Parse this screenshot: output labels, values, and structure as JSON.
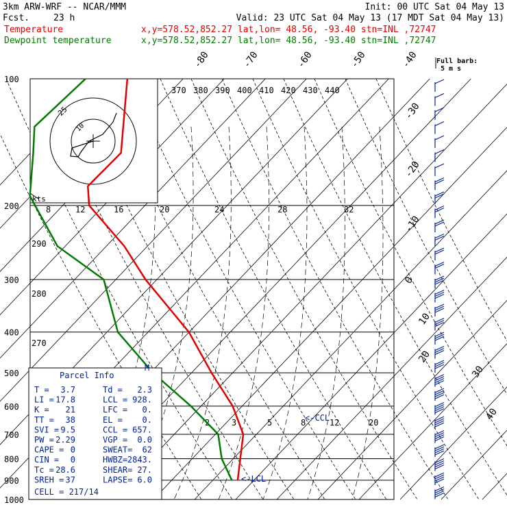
{
  "header": {
    "model": "3km ARW-WRF -- NCAR/MMM",
    "fcst_label": "Fcst.",
    "fcst_value": "23 h",
    "init": "Init: 00 UTC Sat 04 May 13",
    "valid": "Valid: 23 UTC Sat 04 May 13 (17 MDT Sat 04 May 13)"
  },
  "traces": [
    {
      "name": "Temperature",
      "info": "x,y=578.52,852.27   lat,lon= 48.56, -93.40   stn=INL ,72747",
      "color": "#e00000"
    },
    {
      "name": "Dewpoint temperature",
      "info": "x,y=578.52,852.27   lat,lon= 48.56, -93.40   stn=INL ,72747",
      "color": "#007a00"
    }
  ],
  "wind_legend": {
    "title": "Full barb:",
    "value": "5 m s"
  },
  "chart_data": {
    "type": "line",
    "pressure_levels": [
      100,
      200,
      300,
      400,
      500,
      600,
      700,
      800,
      900,
      1000
    ],
    "isotherm_labels": [
      "-80",
      "-70",
      "-60",
      "-50",
      "-40",
      "-30",
      "-20",
      "-10",
      "0",
      "10",
      "20",
      "30",
      "40"
    ],
    "theta_e_labels": [
      "370",
      "380",
      "390",
      "400",
      "410",
      "420",
      "430",
      "440"
    ],
    "mixing_ratio_labels": [
      "8",
      "12",
      "16",
      "20",
      "24",
      "28",
      "32"
    ],
    "mixing_ratio_lower_labels": [
      "2",
      "3",
      "5",
      "8",
      "12",
      "20"
    ],
    "adiabat_labels": [
      "290",
      "280",
      "270"
    ],
    "hodograph": {
      "ring_labels": [
        "25",
        "10"
      ],
      "axis_label": "kts"
    },
    "annotations": {
      "ccl": "<-CCL",
      "lcl": "<-LCL",
      "parcel_marker": "M"
    },
    "series": [
      {
        "name": "Temperature",
        "color": "#e00000",
        "points": [
          [
            100,
            -58
          ],
          [
            150,
            -53
          ],
          [
            180,
            -58
          ],
          [
            200,
            -56
          ],
          [
            250,
            -44
          ],
          [
            300,
            -36
          ],
          [
            400,
            -21
          ],
          [
            500,
            -12
          ],
          [
            600,
            -4
          ],
          [
            700,
            1
          ],
          [
            900,
            3.7
          ]
        ]
      },
      {
        "name": "Dewpoint temperature",
        "color": "#007a00",
        "points": [
          [
            100,
            -68
          ],
          [
            130,
            -76
          ],
          [
            150,
            -74
          ],
          [
            190,
            -71
          ],
          [
            250,
            -60
          ],
          [
            300,
            -46
          ],
          [
            400,
            -38
          ],
          [
            500,
            -26
          ],
          [
            600,
            -14
          ],
          [
            700,
            -5
          ],
          [
            800,
            -2
          ],
          [
            900,
            2.3
          ]
        ]
      }
    ]
  },
  "parcel_info": {
    "title": "Parcel Info",
    "rows": [
      [
        "T  =",
        "3.7",
        "Td =",
        "2.3"
      ],
      [
        "LI =",
        "17.8",
        "LCL =",
        "928."
      ],
      [
        "K  =",
        "21",
        "LFC =",
        "0."
      ],
      [
        "TT =",
        "38",
        "EL  =",
        "0."
      ],
      [
        "SVI =",
        "9.5",
        "CCL =",
        "657."
      ],
      [
        "PW =",
        "2.29",
        "VGP =",
        "0.0"
      ],
      [
        "CAPE =",
        "0",
        "SWEAT=",
        "62"
      ],
      [
        "CIN  =",
        "0",
        "HWBZ=",
        "2843."
      ],
      [
        "Tc  =",
        "28.6",
        "SHEAR=",
        "27."
      ],
      [
        "SREH =",
        "37",
        "LAPSE=",
        "6.0"
      ]
    ],
    "cell": "CELL = 217/14"
  }
}
